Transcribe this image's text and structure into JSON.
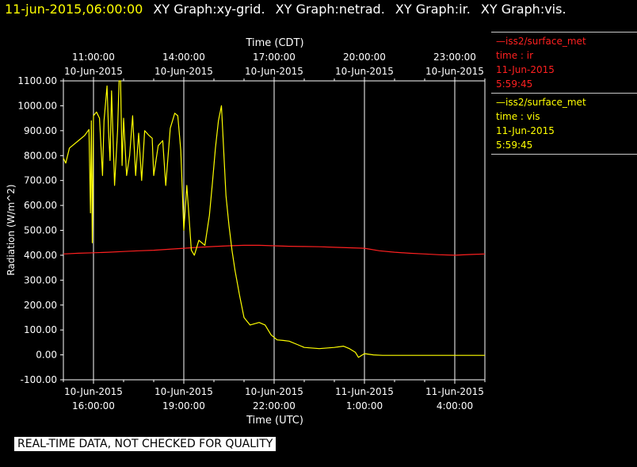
{
  "header": {
    "timestamp": "11-jun-2015,06:00:00",
    "graphs": [
      "XY Graph:xy-grid.",
      "XY Graph:netrad.",
      "XY Graph:ir.",
      "XY Graph:vis."
    ]
  },
  "legend": [
    {
      "name": "iss2/surface_met",
      "var": "time : ir",
      "date": "11-Jun-2015",
      "time": "5:59:45",
      "color": "#ff2020"
    },
    {
      "name": "iss2/surface_met",
      "var": "time : vis",
      "date": "11-Jun-2015",
      "time": "5:59:45",
      "color": "#ffff00"
    }
  ],
  "banner": "REAL-TIME DATA, NOT CHECKED FOR QUALITY",
  "chart_data": {
    "type": "line",
    "ylabel": "Radiation (W/m^2)",
    "ylim": [
      -100,
      1100
    ],
    "yticks": [
      "-100.00",
      "0.00",
      "100.00",
      "200.00",
      "300.00",
      "400.00",
      "500.00",
      "600.00",
      "700.00",
      "800.00",
      "900.00",
      "1000.00",
      "1100.00"
    ],
    "x_unit": "hours since 10-Jun-2015 14:00 UTC",
    "xlim": [
      0,
      14
    ],
    "bottom_axis": {
      "label": "Time (UTC)",
      "ticks": [
        {
          "x": 1,
          "date": "10-Jun-2015",
          "time": "16:00:00"
        },
        {
          "x": 4,
          "date": "10-Jun-2015",
          "time": "19:00:00"
        },
        {
          "x": 7,
          "date": "10-Jun-2015",
          "time": "22:00:00"
        },
        {
          "x": 10,
          "date": "11-Jun-2015",
          "time": "1:00:00"
        },
        {
          "x": 13,
          "date": "11-Jun-2015",
          "time": "4:00:00"
        }
      ]
    },
    "top_axis": {
      "label": "Time (CDT)",
      "ticks": [
        {
          "x": 1,
          "time": "11:00:00",
          "date": "10-Jun-2015"
        },
        {
          "x": 4,
          "time": "14:00:00",
          "date": "10-Jun-2015"
        },
        {
          "x": 7,
          "time": "17:00:00",
          "date": "10-Jun-2015"
        },
        {
          "x": 10,
          "time": "20:00:00",
          "date": "10-Jun-2015"
        },
        {
          "x": 13,
          "time": "23:00:00",
          "date": "10-Jun-2015"
        }
      ]
    },
    "grid": "vertical",
    "series": [
      {
        "name": "time : ir",
        "color": "#ff2020",
        "points": [
          [
            0,
            405
          ],
          [
            0.5,
            408
          ],
          [
            1,
            410
          ],
          [
            1.5,
            412
          ],
          [
            2,
            415
          ],
          [
            2.5,
            418
          ],
          [
            3,
            420
          ],
          [
            3.5,
            424
          ],
          [
            4,
            428
          ],
          [
            4.5,
            432
          ],
          [
            5,
            435
          ],
          [
            5.5,
            438
          ],
          [
            6,
            440
          ],
          [
            6.5,
            440
          ],
          [
            7,
            438
          ],
          [
            7.5,
            436
          ],
          [
            8,
            435
          ],
          [
            8.5,
            434
          ],
          [
            9,
            432
          ],
          [
            9.5,
            430
          ],
          [
            10,
            428
          ],
          [
            10.5,
            418
          ],
          [
            11,
            412
          ],
          [
            11.5,
            408
          ],
          [
            12,
            405
          ],
          [
            12.5,
            402
          ],
          [
            13,
            400
          ],
          [
            13.5,
            403
          ],
          [
            14,
            405
          ]
        ]
      },
      {
        "name": "time : vis",
        "color": "#ffff00",
        "points": [
          [
            0,
            790
          ],
          [
            0.08,
            770
          ],
          [
            0.2,
            830
          ],
          [
            0.5,
            860
          ],
          [
            0.7,
            880
          ],
          [
            0.85,
            905
          ],
          [
            0.9,
            570
          ],
          [
            0.93,
            940
          ],
          [
            0.96,
            450
          ],
          [
            1.0,
            960
          ],
          [
            1.1,
            975
          ],
          [
            1.2,
            950
          ],
          [
            1.3,
            720
          ],
          [
            1.35,
            940
          ],
          [
            1.45,
            1080
          ],
          [
            1.5,
            900
          ],
          [
            1.55,
            780
          ],
          [
            1.6,
            1060
          ],
          [
            1.7,
            680
          ],
          [
            1.8,
            900
          ],
          [
            1.85,
            1100
          ],
          [
            1.9,
            1100
          ],
          [
            1.95,
            760
          ],
          [
            2.0,
            950
          ],
          [
            2.1,
            720
          ],
          [
            2.2,
            800
          ],
          [
            2.3,
            960
          ],
          [
            2.4,
            720
          ],
          [
            2.5,
            890
          ],
          [
            2.6,
            700
          ],
          [
            2.7,
            900
          ],
          [
            2.85,
            880
          ],
          [
            2.95,
            870
          ],
          [
            3.0,
            720
          ],
          [
            3.15,
            840
          ],
          [
            3.3,
            860
          ],
          [
            3.4,
            680
          ],
          [
            3.55,
            910
          ],
          [
            3.7,
            970
          ],
          [
            3.8,
            960
          ],
          [
            3.9,
            820
          ],
          [
            4.0,
            500
          ],
          [
            4.1,
            680
          ],
          [
            4.25,
            420
          ],
          [
            4.35,
            400
          ],
          [
            4.5,
            460
          ],
          [
            4.7,
            440
          ],
          [
            4.85,
            560
          ],
          [
            4.95,
            690
          ],
          [
            5.05,
            830
          ],
          [
            5.15,
            940
          ],
          [
            5.25,
            1000
          ],
          [
            5.3,
            880
          ],
          [
            5.4,
            640
          ],
          [
            5.5,
            520
          ],
          [
            5.6,
            420
          ],
          [
            5.7,
            340
          ],
          [
            5.85,
            240
          ],
          [
            6.0,
            150
          ],
          [
            6.2,
            120
          ],
          [
            6.5,
            130
          ],
          [
            6.7,
            120
          ],
          [
            6.9,
            80
          ],
          [
            7.1,
            60
          ],
          [
            7.3,
            58
          ],
          [
            7.5,
            55
          ],
          [
            7.8,
            40
          ],
          [
            8.0,
            30
          ],
          [
            8.5,
            25
          ],
          [
            9.0,
            30
          ],
          [
            9.3,
            35
          ],
          [
            9.5,
            25
          ],
          [
            9.7,
            10
          ],
          [
            9.8,
            -10
          ],
          [
            10.0,
            5
          ],
          [
            10.3,
            0
          ],
          [
            10.6,
            -2
          ],
          [
            11,
            -2
          ],
          [
            12,
            -2
          ],
          [
            13,
            -2
          ],
          [
            14,
            -2
          ]
        ]
      }
    ]
  }
}
